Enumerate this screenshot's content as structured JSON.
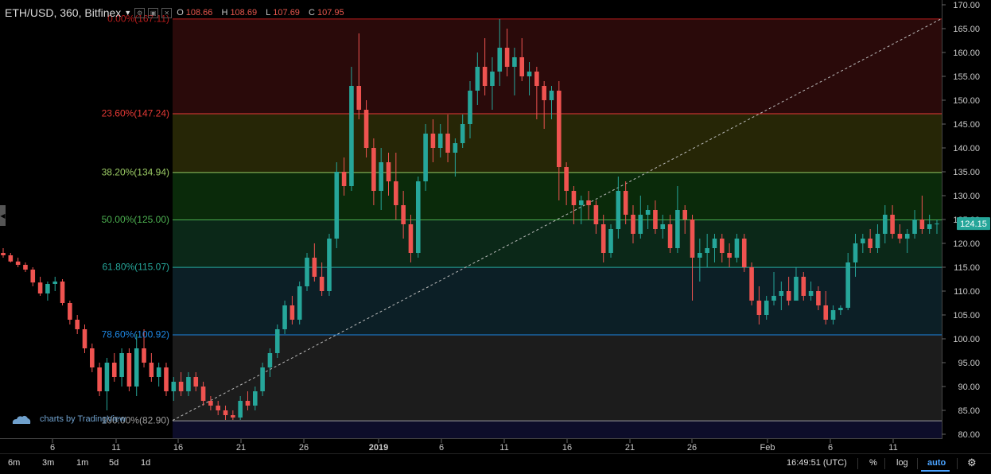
{
  "header": {
    "symbol": "ETH/USD, 360, Bitfinex",
    "ohlc": [
      {
        "key": "O",
        "value": "108.66"
      },
      {
        "key": "H",
        "value": "108.69"
      },
      {
        "key": "L",
        "value": "107.69"
      },
      {
        "key": "C",
        "value": "107.95"
      }
    ]
  },
  "chart_data": {
    "type": "candlestick",
    "title": "ETH/USD, 360, Bitfinex",
    "y_axis": {
      "range": [
        79,
        171
      ],
      "ticks": [
        "80.00",
        "85.00",
        "90.00",
        "95.00",
        "100.00",
        "105.00",
        "110.00",
        "115.00",
        "120.00",
        "125.00",
        "130.00",
        "135.00",
        "140.00",
        "145.00",
        "150.00",
        "155.00",
        "160.00",
        "165.00",
        "170.00"
      ],
      "last_price": "124.15",
      "last_price_color": "#26a69a"
    },
    "x_axis": {
      "labels": [
        "6",
        "11",
        "16",
        "21",
        "26",
        "2019",
        "6",
        "11",
        "16",
        "21",
        "26",
        "Feb",
        "6",
        "11"
      ]
    },
    "fibonacci": {
      "high": 167.11,
      "low": 82.9,
      "levels": [
        {
          "label": "0.00%(167.11)",
          "price": 167.11,
          "color": "#b71c1c",
          "fill": "#2a0a0a"
        },
        {
          "label": "23.60%(147.24)",
          "price": 147.24,
          "color": "#e53935",
          "fill": "#262606"
        },
        {
          "label": "38.20%(134.94)",
          "price": 134.94,
          "color": "#9ccc65",
          "fill": "#0a2a0a"
        },
        {
          "label": "50.00%(125.00)",
          "price": 125.0,
          "color": "#4caf50",
          "fill": "#0b2818"
        },
        {
          "label": "61.80%(115.07)",
          "price": 115.07,
          "color": "#26a69a",
          "fill": "#0c1f26"
        },
        {
          "label": "78.60%(100.92)",
          "price": 100.92,
          "color": "#1e88e5",
          "fill": "#1c1c1c"
        },
        {
          "label": "100.00%(82.90)",
          "price": 82.9,
          "color": "#9e9e9e",
          "fill": "#0d0d2a"
        }
      ]
    },
    "trendline": {
      "from": 82.9,
      "to": 167.11,
      "style": "dashed"
    },
    "colors": {
      "up": "#26a69a",
      "down": "#ef5350"
    },
    "candles": [
      [
        118,
        119,
        117,
        117.5
      ],
      [
        117.5,
        118,
        116,
        116.2
      ],
      [
        116.2,
        117,
        115,
        115.5
      ],
      [
        115.5,
        116,
        114,
        114.5
      ],
      [
        114.5,
        115,
        111,
        111.8
      ],
      [
        111.8,
        113,
        109,
        109.5
      ],
      [
        109.5,
        112,
        108,
        111.5
      ],
      [
        111.5,
        113,
        110,
        112
      ],
      [
        112,
        112.5,
        107,
        107.5
      ],
      [
        107.5,
        108,
        103,
        104
      ],
      [
        104,
        105,
        101,
        102
      ],
      [
        102,
        103,
        97,
        98
      ],
      [
        98,
        99,
        93,
        94
      ],
      [
        94,
        95,
        88,
        89
      ],
      [
        89,
        96,
        85,
        95
      ],
      [
        95,
        97,
        91,
        92
      ],
      [
        92,
        98,
        90,
        97
      ],
      [
        97,
        98,
        89,
        90
      ],
      [
        90,
        101,
        88,
        98
      ],
      [
        98,
        102,
        94,
        95
      ],
      [
        95,
        97,
        91,
        92
      ],
      [
        92,
        95,
        90,
        94
      ],
      [
        94,
        95,
        88,
        89
      ],
      [
        89,
        92,
        87,
        91
      ],
      [
        91,
        93,
        88,
        89
      ],
      [
        89,
        93,
        88,
        92
      ],
      [
        92,
        93,
        89,
        90
      ],
      [
        90,
        91,
        86,
        87
      ],
      [
        87,
        88,
        85,
        86
      ],
      [
        86,
        87,
        84,
        85
      ],
      [
        85,
        86,
        83,
        84
      ],
      [
        84,
        85,
        83,
        83.5
      ],
      [
        83.5,
        88,
        83,
        87
      ],
      [
        87,
        89,
        85,
        86
      ],
      [
        86,
        90,
        85,
        89
      ],
      [
        89,
        95,
        88,
        94
      ],
      [
        94,
        98,
        92,
        97
      ],
      [
        97,
        103,
        96,
        102
      ],
      [
        102,
        108,
        101,
        107
      ],
      [
        107,
        109,
        103,
        104
      ],
      [
        104,
        112,
        103,
        111
      ],
      [
        111,
        118,
        110,
        117
      ],
      [
        117,
        120,
        112,
        113
      ],
      [
        113,
        116,
        109,
        110
      ],
      [
        110,
        122,
        109,
        121
      ],
      [
        121,
        137,
        119,
        135
      ],
      [
        135,
        138,
        130,
        132
      ],
      [
        132,
        157,
        131,
        153
      ],
      [
        153,
        164,
        146,
        148
      ],
      [
        148,
        150,
        138,
        140
      ],
      [
        140,
        142,
        128,
        131
      ],
      [
        131,
        140,
        127,
        137
      ],
      [
        137,
        139,
        130,
        133
      ],
      [
        133,
        139,
        125,
        128
      ],
      [
        128,
        131,
        121,
        124
      ],
      [
        124,
        126,
        116,
        118
      ],
      [
        118,
        134,
        117,
        133
      ],
      [
        133,
        145,
        131,
        143
      ],
      [
        143,
        146,
        137,
        140
      ],
      [
        140,
        145,
        138,
        143
      ],
      [
        143,
        147,
        137,
        139
      ],
      [
        139,
        142,
        134,
        141
      ],
      [
        141,
        147,
        140,
        145
      ],
      [
        145,
        154,
        142,
        152
      ],
      [
        152,
        160,
        149,
        157
      ],
      [
        157,
        163,
        151,
        153
      ],
      [
        153,
        159,
        148,
        156
      ],
      [
        156,
        167,
        153,
        161
      ],
      [
        161,
        165,
        155,
        157
      ],
      [
        157,
        161,
        151,
        159
      ],
      [
        159,
        163,
        154,
        155
      ],
      [
        155,
        158,
        151,
        156
      ],
      [
        156,
        157,
        146,
        153
      ],
      [
        153,
        154,
        144,
        150
      ],
      [
        150,
        153,
        146,
        152
      ],
      [
        152,
        154,
        129,
        136
      ],
      [
        136,
        137,
        128,
        131
      ],
      [
        131,
        132,
        124,
        128
      ],
      [
        128,
        130,
        124,
        129
      ],
      [
        129,
        131,
        125,
        128
      ],
      [
        128,
        129,
        122,
        124
      ],
      [
        124,
        126,
        116,
        118
      ],
      [
        118,
        124,
        117,
        123
      ],
      [
        123,
        134,
        121,
        131
      ],
      [
        131,
        133,
        124,
        126
      ],
      [
        126,
        128,
        120,
        122
      ],
      [
        122,
        130,
        121,
        126
      ],
      [
        126,
        128,
        123,
        127
      ],
      [
        127,
        129,
        122,
        123
      ],
      [
        123,
        126,
        121,
        124
      ],
      [
        124,
        126,
        118,
        119
      ],
      [
        119,
        132,
        118,
        127
      ],
      [
        127,
        128,
        122,
        125
      ],
      [
        125,
        126,
        108,
        117
      ],
      [
        117,
        121,
        112,
        118
      ],
      [
        118,
        122,
        115,
        119
      ],
      [
        119,
        122,
        116,
        121
      ],
      [
        121,
        122,
        116,
        118
      ],
      [
        118,
        120,
        115,
        117
      ],
      [
        117,
        122,
        116,
        121
      ],
      [
        121,
        122,
        114,
        115
      ],
      [
        115,
        116,
        107,
        108
      ],
      [
        108,
        111,
        103,
        105
      ],
      [
        105,
        109,
        104,
        108
      ],
      [
        108,
        114,
        107,
        109
      ],
      [
        109,
        112,
        106,
        110
      ],
      [
        110,
        113,
        107,
        108
      ],
      [
        108,
        115,
        108,
        113
      ],
      [
        113,
        114,
        108,
        109
      ],
      [
        109,
        112,
        108,
        110
      ],
      [
        110,
        111,
        106,
        107
      ],
      [
        107,
        110,
        103,
        104
      ],
      [
        104,
        107,
        103,
        106
      ],
      [
        106,
        107,
        105,
        106.5
      ],
      [
        106.5,
        118,
        106,
        116
      ],
      [
        116,
        122,
        113,
        120
      ],
      [
        120,
        122,
        118,
        121
      ],
      [
        121,
        123,
        118,
        119
      ],
      [
        119,
        124,
        118,
        122
      ],
      [
        122,
        128,
        120,
        126
      ],
      [
        126,
        128,
        121,
        122
      ],
      [
        122,
        124,
        120,
        121
      ],
      [
        121,
        123,
        118,
        122
      ],
      [
        122,
        127,
        121,
        125
      ],
      [
        125,
        130,
        122,
        123
      ],
      [
        123,
        126,
        122,
        124
      ],
      [
        124,
        125,
        122,
        124.15
      ]
    ]
  },
  "watermark": "charts by TradingView",
  "bottom_bar": {
    "ranges": [
      "6m",
      "3m",
      "1m",
      "5d",
      "1d"
    ],
    "time": "16:49:51 (UTC)",
    "percent": "%",
    "log": "log",
    "auto": "auto"
  }
}
